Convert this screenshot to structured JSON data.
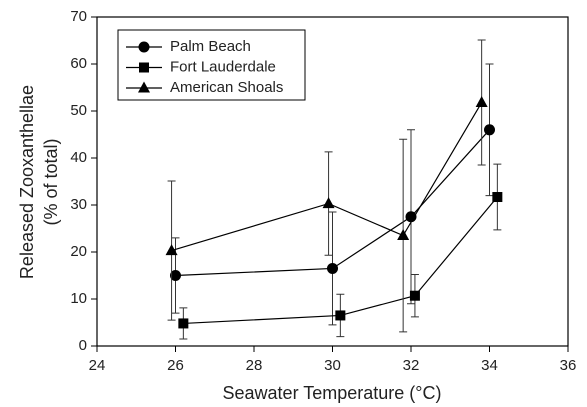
{
  "chart_data": {
    "type": "line",
    "xlabel": "Seawater Temperature (°C)",
    "ylabel": [
      "Released Zooxanthellae",
      "(% of total)"
    ],
    "xlim": [
      24,
      36
    ],
    "xticks": [
      24,
      26,
      28,
      30,
      32,
      34,
      36
    ],
    "ylim": [
      0,
      70
    ],
    "yticks": [
      0,
      10,
      20,
      30,
      40,
      50,
      60,
      70
    ],
    "legend": "upper left",
    "series": [
      {
        "name": "Palm Beach",
        "color": "#000000",
        "marker": "circle",
        "x": [
          26.0,
          30.0,
          32.0,
          34.0
        ],
        "values": [
          15,
          16.5,
          27.5,
          46
        ],
        "errors": [
          8,
          12,
          18.5,
          14
        ]
      },
      {
        "name": "Fort Lauderdale",
        "color": "#000000",
        "marker": "square",
        "x": [
          26.2,
          30.2,
          32.1,
          34.2
        ],
        "values": [
          4.8,
          6.5,
          10.7,
          31.7
        ],
        "errors": [
          3.3,
          4.5,
          4.5,
          7
        ]
      },
      {
        "name": "American Shoals",
        "color": "#000000",
        "marker": "triangle",
        "x": [
          25.9,
          29.9,
          31.8,
          33.8
        ],
        "values": [
          20.3,
          30.3,
          23.5,
          51.8
        ],
        "errors": [
          14.8,
          11,
          20.5,
          13.3
        ]
      }
    ]
  }
}
